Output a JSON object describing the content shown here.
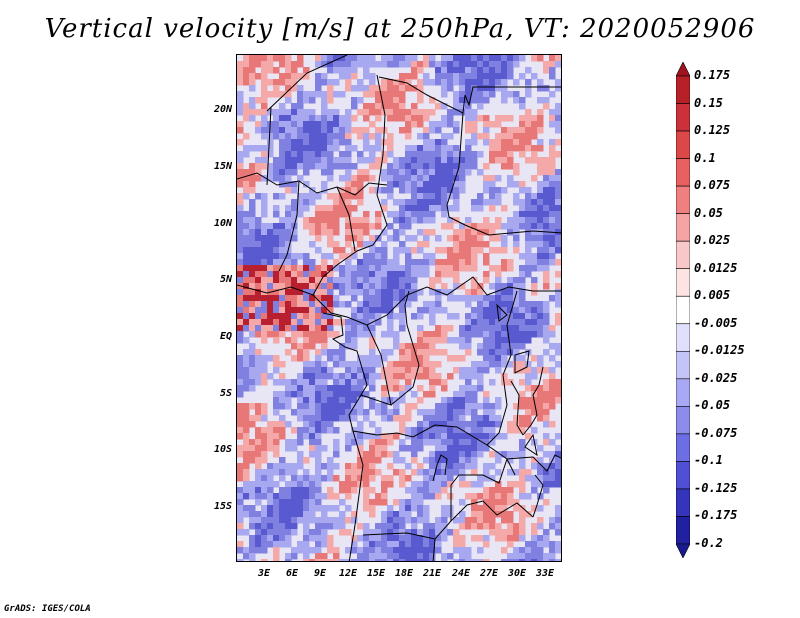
{
  "title": "Vertical velocity [m/s] at 250hPa, VT: 2020052906",
  "credit": "GrADS: IGES/COLA",
  "lat_labels": [
    "20N",
    "15N",
    "10N",
    "5N",
    "EQ",
    "5S",
    "10S",
    "15S"
  ],
  "lon_labels": [
    "3E",
    "6E",
    "9E",
    "12E",
    "15E",
    "18E",
    "21E",
    "24E",
    "27E",
    "30E",
    "33E"
  ],
  "colorbar": {
    "labels": [
      "0.175",
      "0.15",
      "0.125",
      "0.1",
      "0.075",
      "0.05",
      "0.025",
      "0.0125",
      "0.005",
      "-0.005",
      "-0.0125",
      "-0.025",
      "-0.05",
      "-0.075",
      "-0.1",
      "-0.125",
      "-0.175",
      "-0.2"
    ],
    "colors": [
      "#a01420",
      "#b82028",
      "#cc3038",
      "#dc4848",
      "#e86060",
      "#f08080",
      "#f4a4a4",
      "#f8c8c8",
      "#fce4e4",
      "#ffffff",
      "#e0e0fc",
      "#c4c4f8",
      "#a8a8f4",
      "#8c8cec",
      "#6e6ee4",
      "#5050d4",
      "#3434bc",
      "#2020a0",
      "#1a1a90"
    ]
  },
  "map_colors": {
    "neutral": "#e8e6f4",
    "blue_light": "#a8a8f0",
    "blue_mid": "#8080e0",
    "blue_dark": "#5a5ad0",
    "red_light": "#f4a8a8",
    "red_mid": "#e87878",
    "red_dark": "#b82030",
    "border": "#000000"
  }
}
